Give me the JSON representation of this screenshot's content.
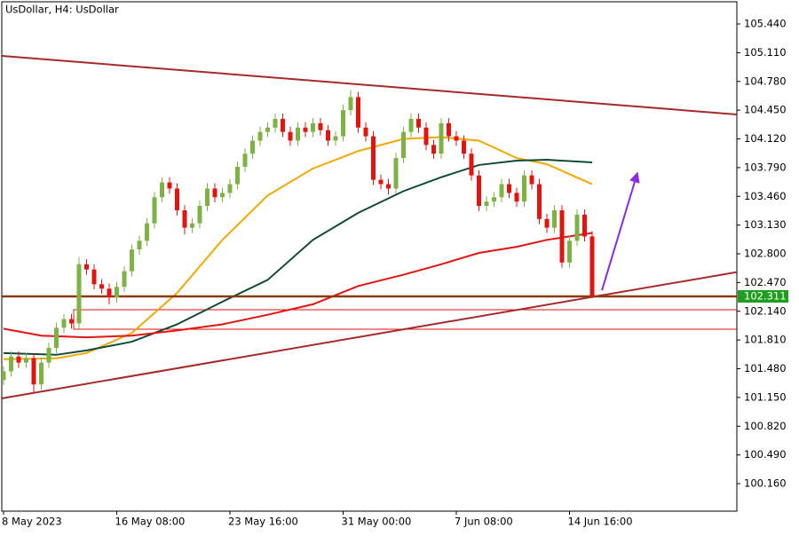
{
  "chart_data": {
    "type": "candlestick",
    "title": "UsDollar, H4:  UsDollar",
    "categories": [
      "8 May 2023",
      null,
      null,
      null,
      null,
      null,
      null,
      null,
      null,
      null,
      null,
      null,
      null,
      null,
      null,
      "16 May 08:00",
      null,
      null,
      null,
      null,
      null,
      null,
      null,
      null,
      null,
      null,
      null,
      null,
      null,
      null,
      "23 May 16:00",
      null,
      null,
      null,
      null,
      null,
      null,
      null,
      null,
      null,
      null,
      null,
      null,
      null,
      null,
      "31 May 00:00",
      null,
      null,
      null,
      null,
      null,
      null,
      null,
      null,
      null,
      null,
      null,
      null,
      null,
      null,
      "7 Jun 08:00",
      null,
      null,
      null,
      null,
      null,
      null,
      null,
      null,
      null,
      null,
      null,
      null,
      null,
      null,
      "14 Jun 16:00",
      null,
      null,
      null
    ],
    "open": [
      101.35,
      101.45,
      101.62,
      101.55,
      101.6,
      101.3,
      101.55,
      101.72,
      101.95,
      102.05,
      102.0,
      102.68,
      102.62,
      102.45,
      102.4,
      102.3,
      102.42,
      102.6,
      102.85,
      102.95,
      103.15,
      103.45,
      103.62,
      103.55,
      103.3,
      103.1,
      103.15,
      103.35,
      103.55,
      103.45,
      103.5,
      103.6,
      103.8,
      103.95,
      104.1,
      104.2,
      104.25,
      104.35,
      104.2,
      104.1,
      104.25,
      104.2,
      104.3,
      104.22,
      104.1,
      104.15,
      104.45,
      104.6,
      104.25,
      104.15,
      103.65,
      103.6,
      103.55,
      103.9,
      104.2,
      104.35,
      104.25,
      104.05,
      103.95,
      104.3,
      104.15,
      104.1,
      103.95,
      103.7,
      103.35,
      103.4,
      103.45,
      103.6,
      103.5,
      103.4,
      103.7,
      103.6,
      103.2,
      103.1,
      103.3,
      102.7,
      102.95,
      103.25,
      103.0
    ],
    "high": [
      101.51,
      101.68,
      101.68,
      101.66,
      101.66,
      101.61,
      101.78,
      102.01,
      102.11,
      102.11,
      102.76,
      102.74,
      102.68,
      102.51,
      102.46,
      102.48,
      102.66,
      102.91,
      103.01,
      103.21,
      103.51,
      103.68,
      103.68,
      103.61,
      103.36,
      103.21,
      103.41,
      103.61,
      103.61,
      103.56,
      103.66,
      103.86,
      104.01,
      104.16,
      104.26,
      104.31,
      104.41,
      104.41,
      104.26,
      104.31,
      104.31,
      104.36,
      104.36,
      104.28,
      104.21,
      104.51,
      104.68,
      104.66,
      104.31,
      104.21,
      103.71,
      103.66,
      103.96,
      104.26,
      104.41,
      104.41,
      104.31,
      104.11,
      104.36,
      104.36,
      104.21,
      104.16,
      104.01,
      103.76,
      103.46,
      103.51,
      103.66,
      103.66,
      103.56,
      103.76,
      103.76,
      103.66,
      103.26,
      103.36,
      103.36,
      103.01,
      103.31,
      103.31,
      103.06
    ],
    "low": [
      101.29,
      101.39,
      101.49,
      101.49,
      101.2,
      101.24,
      101.49,
      101.66,
      101.89,
      101.94,
      101.94,
      102.56,
      102.39,
      102.34,
      102.22,
      102.24,
      102.36,
      102.54,
      102.79,
      102.89,
      103.09,
      103.39,
      103.49,
      103.24,
      103.02,
      103.04,
      103.09,
      103.29,
      103.39,
      103.39,
      103.44,
      103.54,
      103.74,
      103.89,
      104.04,
      104.14,
      104.19,
      104.14,
      104.04,
      104.04,
      104.14,
      104.14,
      104.16,
      104.04,
      104.04,
      104.09,
      104.39,
      104.19,
      104.09,
      103.59,
      103.54,
      103.48,
      103.49,
      103.84,
      104.14,
      104.19,
      103.99,
      103.89,
      103.89,
      104.09,
      104.04,
      103.89,
      103.64,
      103.29,
      103.29,
      103.34,
      103.39,
      103.44,
      103.34,
      103.34,
      103.54,
      103.14,
      103.04,
      103.04,
      102.64,
      102.64,
      102.89,
      102.94,
      102.29
    ],
    "close": [
      101.45,
      101.62,
      101.55,
      101.6,
      101.3,
      101.55,
      101.72,
      101.95,
      102.05,
      102.0,
      102.68,
      102.62,
      102.45,
      102.4,
      102.3,
      102.42,
      102.6,
      102.85,
      102.95,
      103.15,
      103.45,
      103.62,
      103.55,
      103.3,
      103.1,
      103.15,
      103.35,
      103.55,
      103.45,
      103.5,
      103.6,
      103.8,
      103.95,
      104.1,
      104.2,
      104.25,
      104.35,
      104.2,
      104.1,
      104.25,
      104.2,
      104.3,
      104.22,
      104.1,
      104.15,
      104.45,
      104.6,
      104.25,
      104.15,
      103.65,
      103.6,
      103.55,
      103.9,
      104.2,
      104.35,
      104.25,
      104.05,
      103.95,
      104.3,
      104.15,
      104.1,
      103.95,
      103.7,
      103.35,
      103.4,
      103.45,
      103.6,
      103.5,
      103.4,
      103.7,
      103.6,
      103.2,
      103.1,
      103.3,
      102.7,
      102.95,
      103.25,
      103.0,
      102.311
    ],
    "up_color": "#7cb342",
    "down_color": "#e3140f",
    "ylim": [
      99.844,
      105.695
    ],
    "yticks": [
      {
        "value": 100.16,
        "label": "100.160"
      },
      {
        "value": 100.49,
        "label": "100.490"
      },
      {
        "value": 100.82,
        "label": "100.820"
      },
      {
        "value": 101.15,
        "label": "101.150"
      },
      {
        "value": 101.48,
        "label": "101.480"
      },
      {
        "value": 101.81,
        "label": "101.810"
      },
      {
        "value": 102.14,
        "label": "102.140"
      },
      {
        "value": 102.47,
        "label": "102.470"
      },
      {
        "value": 102.8,
        "label": "102.800"
      },
      {
        "value": 103.13,
        "label": "103.130"
      },
      {
        "value": 103.46,
        "label": "103.460"
      },
      {
        "value": 103.79,
        "label": "103.790"
      },
      {
        "value": 104.12,
        "label": "104.120"
      },
      {
        "value": 104.45,
        "label": "104.450"
      },
      {
        "value": 104.78,
        "label": "104.780"
      },
      {
        "value": 105.11,
        "label": "105.110"
      },
      {
        "value": 105.44,
        "label": "105.440"
      }
    ],
    "moving_averages": [
      {
        "color": "#f5a800",
        "x": [
          0,
          7,
          11,
          17,
          23,
          29,
          35,
          41,
          47,
          53,
          58,
          63,
          68,
          72,
          78
        ],
        "values": [
          101.59,
          101.6,
          101.66,
          101.89,
          102.35,
          102.96,
          103.47,
          103.78,
          103.98,
          104.12,
          104.14,
          104.1,
          103.9,
          103.83,
          103.6
        ]
      },
      {
        "color": "#0f4a3a",
        "x": [
          0,
          7,
          11,
          17,
          23,
          29,
          35,
          41,
          47,
          53,
          58,
          63,
          68,
          72,
          78
        ],
        "values": [
          101.66,
          101.64,
          101.69,
          101.79,
          101.99,
          102.25,
          102.5,
          102.96,
          103.27,
          103.52,
          103.68,
          103.82,
          103.87,
          103.88,
          103.85
        ]
      },
      {
        "color": "#e3140f",
        "x": [
          0,
          5,
          11,
          17,
          23,
          29,
          35,
          41,
          47,
          53,
          58,
          63,
          68,
          72,
          78
        ],
        "values": [
          101.94,
          101.86,
          101.84,
          101.86,
          101.92,
          101.99,
          102.1,
          102.22,
          102.43,
          102.56,
          102.68,
          102.81,
          102.88,
          102.96,
          103.04
        ]
      }
    ],
    "trendlines": [
      {
        "color": "#a52a2a",
        "x": [
          -0.2,
          97.2
        ],
        "values": [
          105.073,
          104.4
        ]
      },
      {
        "color": "#a52a2a",
        "x": [
          -0.2,
          97.2
        ],
        "values": [
          101.14,
          102.59
        ]
      }
    ],
    "zone": {
      "top": 102.158,
      "bottom": 101.934,
      "x_start": 9.3,
      "color": "#e3140f"
    },
    "level": 102.311,
    "level_color": "#8b3a0f",
    "price_tag_color": "#1f9d1f",
    "arrow": {
      "color": "#8a2be2",
      "x": [
        79.3,
        84
      ],
      "values": [
        102.38,
        103.73
      ]
    }
  }
}
